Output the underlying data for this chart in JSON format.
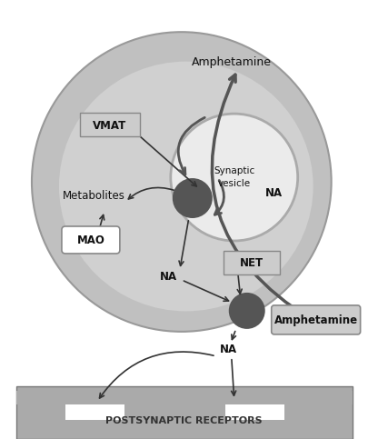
{
  "bg_color": "#ffffff",
  "terminal_color": "#c0c0c0",
  "terminal_inner_color": "#d0d0d0",
  "vesicle_color": "#ebebeb",
  "vesicle_border": "#aaaaaa",
  "dark_circle_color": "#555555",
  "postsynaptic_color": "#aaaaaa",
  "postsynaptic_text_color": "#333333",
  "label_box_color": "#cccccc",
  "arrow_color": "#333333",
  "thick_arrow_color": "#666666",
  "text_color": "#111111",
  "title": "POSTSYNAPTIC RECEPTORS",
  "labels": {
    "amphetamine_top": "Amphetamine",
    "amphetamine_right": "Amphetamine",
    "vmat": "VMAT",
    "metabolites": "Metabolites",
    "mao": "MAO",
    "synaptic_vesicle_line1": "Synaptic",
    "synaptic_vesicle_line2": "vesicle",
    "na_vesicle": "NA",
    "na_cytoplasm": "NA",
    "na_cleft": "NA",
    "net": "NET"
  }
}
